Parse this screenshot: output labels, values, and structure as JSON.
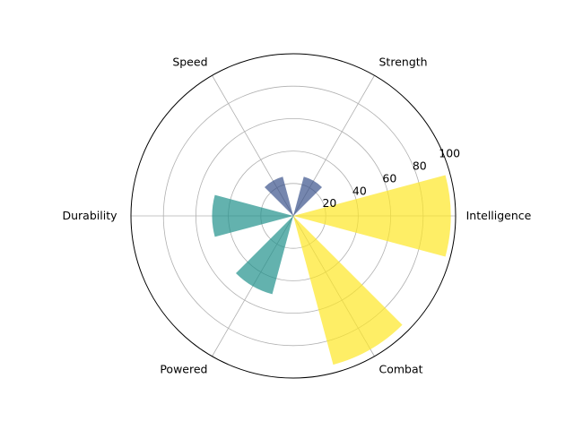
{
  "chart_data": {
    "type": "bar",
    "projection": "polar",
    "categories": [
      "Intelligence",
      "Strength",
      "Speed",
      "Durability",
      "Powered",
      "Combat"
    ],
    "values": [
      97,
      25,
      25,
      50,
      50,
      95
    ],
    "bar_colors": [
      "#fde725",
      "#3b528b",
      "#3b528b",
      "#21918c",
      "#21918c",
      "#fde725"
    ],
    "bar_alpha": 0.7,
    "radial_ticks": [
      "20",
      "40",
      "60",
      "80",
      "100"
    ],
    "radial_tick_values": [
      20,
      40,
      60,
      80,
      100
    ],
    "rlim": [
      0,
      100
    ],
    "grid": true,
    "grid_color": "#b0b0b0",
    "title": "",
    "legend": "none"
  }
}
